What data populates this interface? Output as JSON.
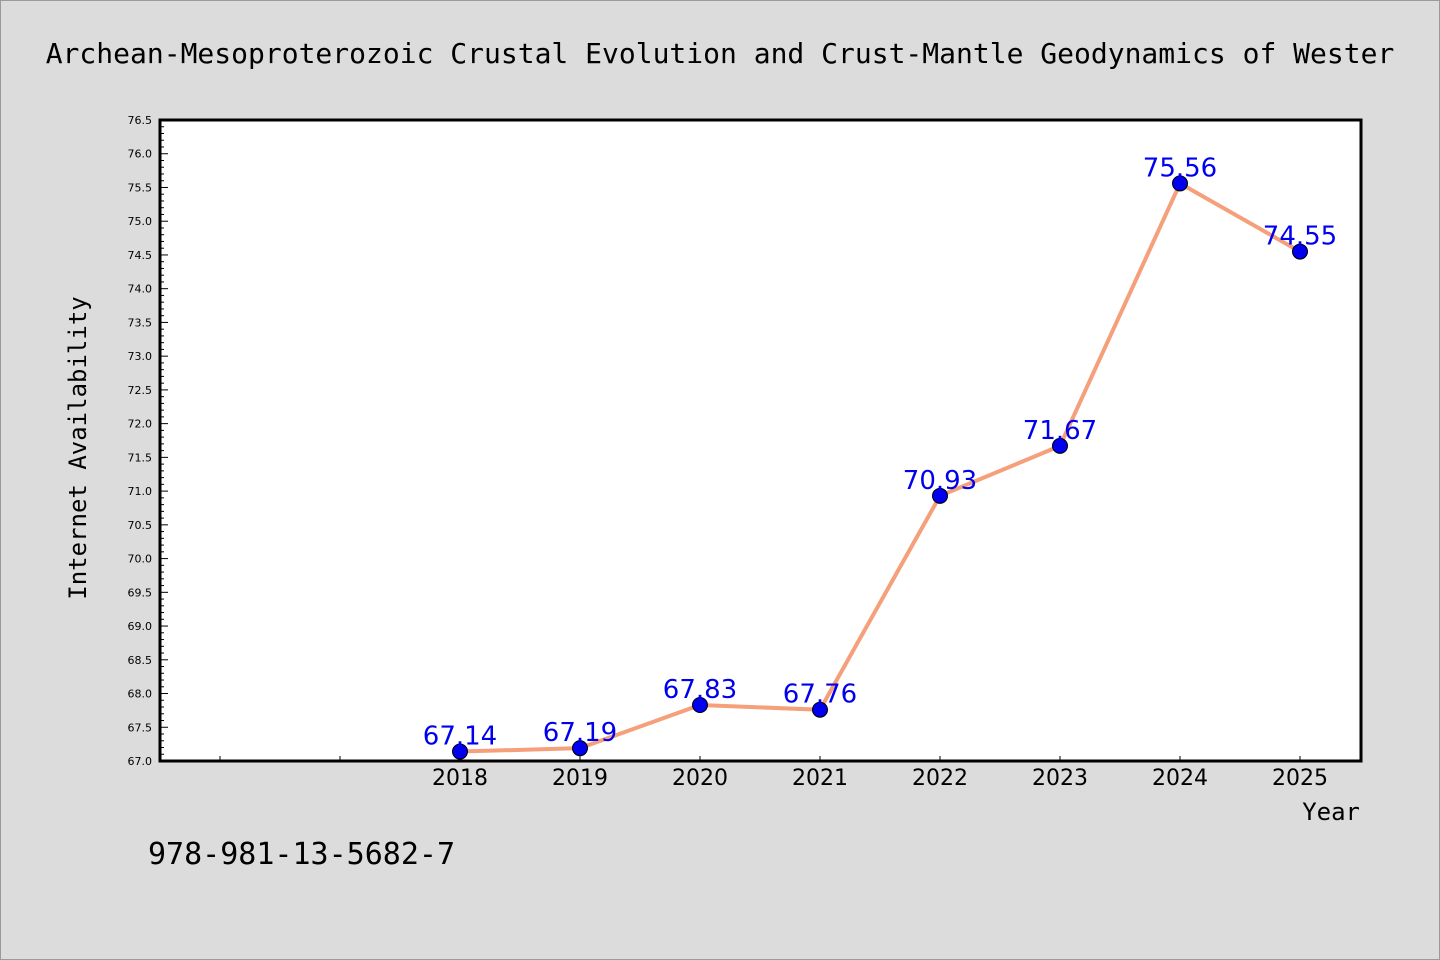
{
  "chart_data": {
    "type": "line",
    "title": "Archean-Mesoproterozoic Crustal Evolution and Crust-Mantle Geodynamics of Wester",
    "xlabel": "Year",
    "ylabel": "Internet Availability",
    "categories": [
      "2018",
      "2019",
      "2020",
      "2021",
      "2022",
      "2023",
      "2024",
      "2025"
    ],
    "series": [
      {
        "values": [
          67.14,
          67.19,
          67.83,
          67.76,
          70.93,
          71.67,
          75.56,
          74.55
        ],
        "labels": [
          "67.14",
          "67.19",
          "67.83",
          "67.76",
          "70.93",
          "71.67",
          "75.56",
          "74.55"
        ],
        "line_color": "#f5a07a",
        "marker_color": "#0000ee",
        "label_color": "#0000ee"
      }
    ],
    "ylim": [
      67.0,
      76.5
    ],
    "yticks": [
      "67.0",
      "67.5",
      "68.0",
      "68.5",
      "69.0",
      "69.5",
      "70.0",
      "70.5",
      "71.0",
      "71.5",
      "72.0",
      "72.5",
      "73.0",
      "73.5",
      "74.0",
      "74.5",
      "75.0",
      "75.5",
      "76.0",
      "76.5"
    ],
    "grid": false,
    "background": "#ffffff"
  },
  "footer": {
    "isbn": "978-981-13-5682-7"
  }
}
